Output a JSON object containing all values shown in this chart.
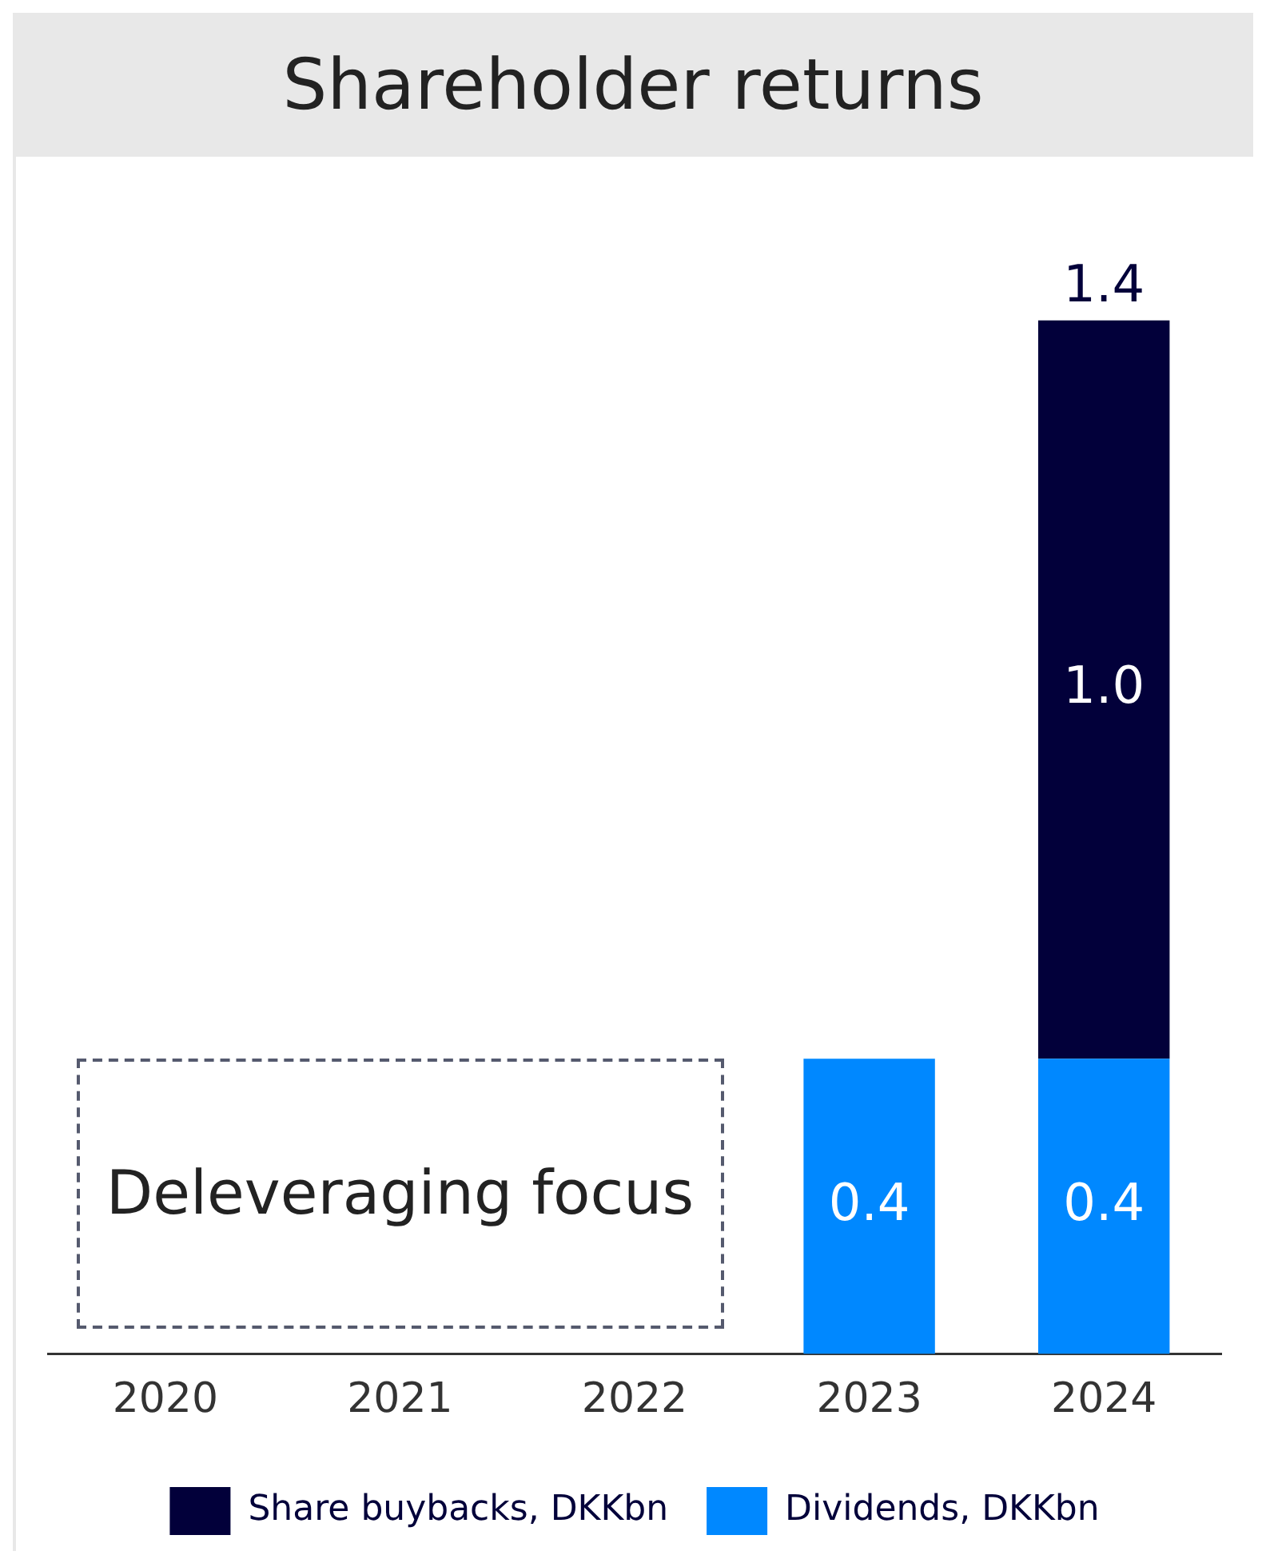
{
  "chart_data": {
    "type": "bar",
    "title": "Shareholder returns",
    "categories": [
      "2020",
      "2021",
      "2022",
      "2023",
      "2024"
    ],
    "stacked": true,
    "series": [
      {
        "name": "Dividends, DKKbn",
        "color": "#0088ff",
        "values": [
          null,
          null,
          null,
          0.4,
          0.4
        ],
        "value_labels": [
          null,
          null,
          null,
          "0.4",
          "0.4"
        ]
      },
      {
        "name": "Share buybacks, DKKbn",
        "color": "#02003a",
        "values": [
          null,
          null,
          null,
          null,
          1.0
        ],
        "value_labels": [
          null,
          null,
          null,
          null,
          "1.0"
        ]
      }
    ],
    "totals": [
      null,
      null,
      null,
      null,
      "1.4"
    ],
    "legend": "bottom",
    "grid": false,
    "annotations": [
      "Deleveraging focus"
    ]
  }
}
